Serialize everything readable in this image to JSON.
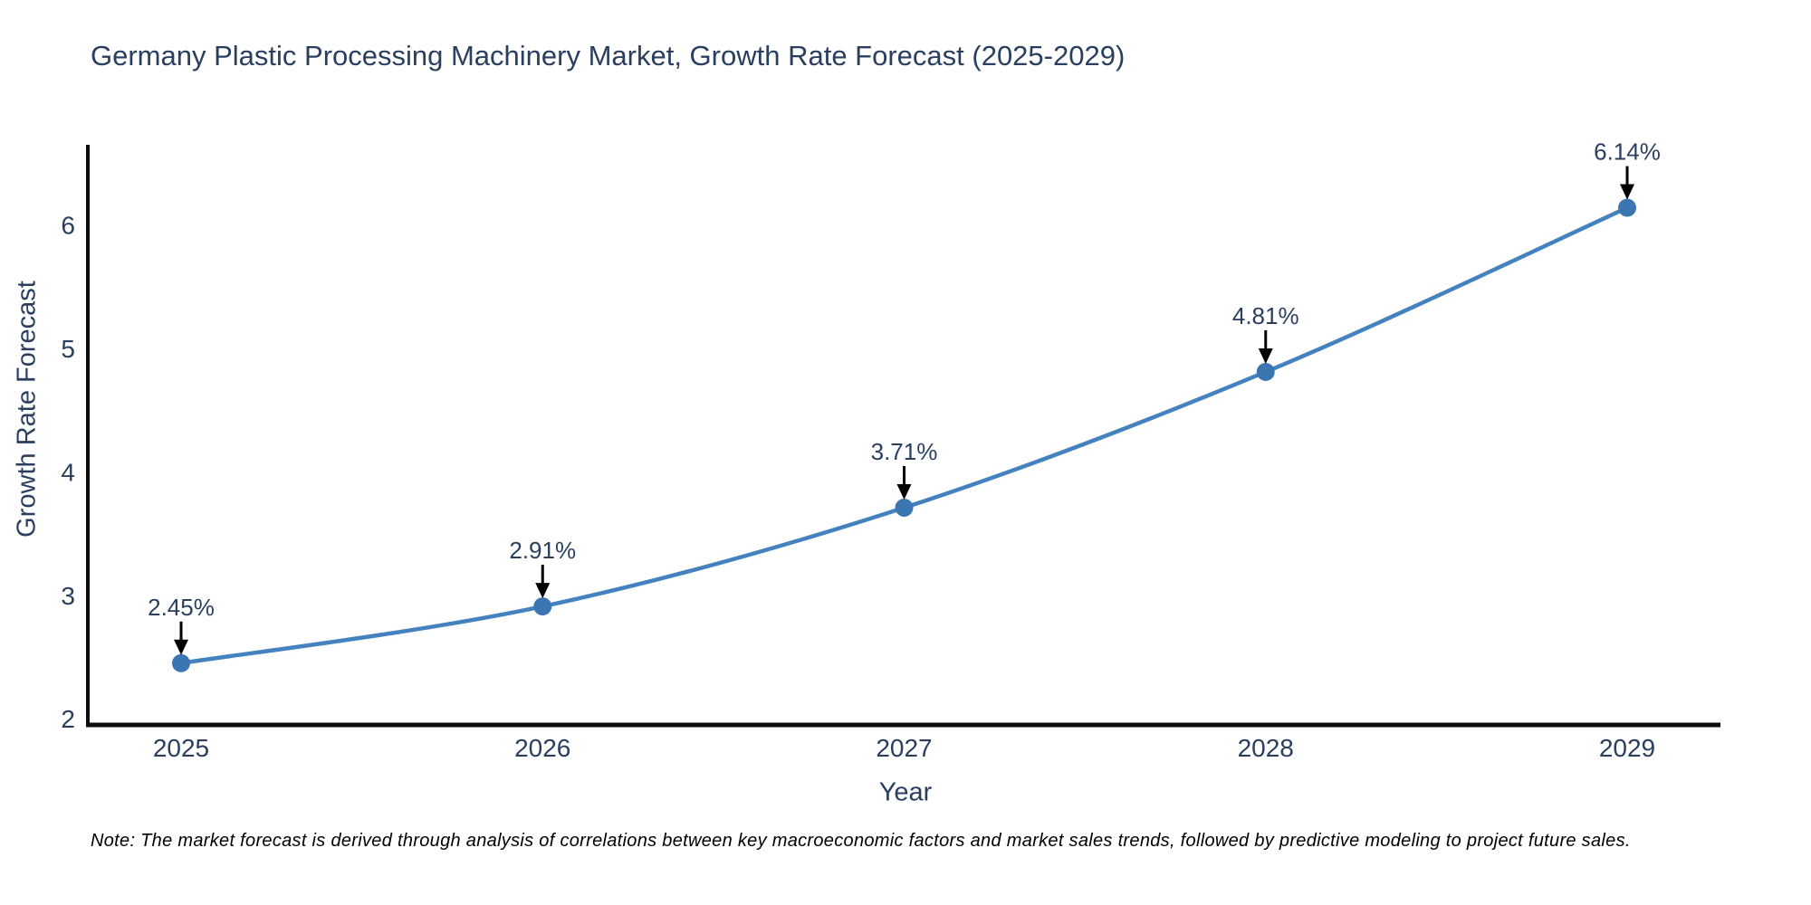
{
  "note": "Note: The market forecast is derived through analysis of correlations between key macroeconomic factors and market sales trends, followed by predictive modeling to project future sales.",
  "chart_data": {
    "type": "line",
    "title": "Germany Plastic Processing Machinery Market, Growth Rate Forecast (2025-2029)",
    "xlabel": "Year",
    "ylabel": "Growth Rate Forecast",
    "categories": [
      "2025",
      "2026",
      "2027",
      "2028",
      "2029"
    ],
    "values": [
      2.45,
      2.91,
      3.71,
      4.81,
      6.14
    ],
    "point_labels": [
      "2.45%",
      "2.91%",
      "3.71%",
      "4.81%",
      "6.14%"
    ],
    "y_ticks": [
      2,
      3,
      4,
      5,
      6
    ],
    "ylim": [
      1.95,
      6.65
    ],
    "grid": false,
    "legend_position": "none",
    "marker_style": "circle",
    "annotation_arrows": true,
    "colors": {
      "line": "#4381bf",
      "marker": "#3c76b2",
      "axis": "#0d0d0d",
      "chart_text": "#2a3f5f",
      "annotation_arrow": "#000000",
      "background": "#ffffff"
    }
  }
}
